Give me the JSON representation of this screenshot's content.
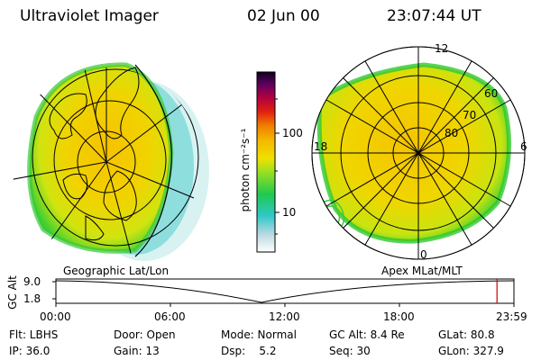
{
  "header": {
    "instrument": "Ultraviolet Imager",
    "date": "02 Jun 00",
    "time": "23:07:44 UT"
  },
  "colorbar": {
    "unit_label": "photon cm⁻²s⁻¹",
    "ticks": [
      "100",
      "10"
    ]
  },
  "geo_panel": {
    "label": "Geographic Lat/Lon"
  },
  "polar_panel": {
    "label": "Apex MLat/MLT",
    "mlt_labels": {
      "top": "12",
      "left": "18",
      "right": "6",
      "bottom": "0"
    },
    "lat_labels": [
      "60",
      "70",
      "80"
    ]
  },
  "orbit_plot": {
    "ylabel": "GC Alt",
    "y_ticks": [
      "9.0",
      "1.8"
    ],
    "x_ticks": [
      "00:00",
      "06:00",
      "12:00",
      "18:00",
      "23:59"
    ],
    "current_time_fraction": 0.963
  },
  "info": {
    "row1": [
      {
        "key": "Flt: LBHS"
      },
      {
        "key": "Door: Open"
      },
      {
        "key": "Mode: Normal"
      },
      {
        "key": "GC Alt: 8.4 Re"
      },
      {
        "key": "GLat: 80.8"
      }
    ],
    "row2": [
      {
        "key": "IP: 36.0"
      },
      {
        "key": "Gain: 13"
      },
      {
        "key": "Dsp:    5.2"
      },
      {
        "key": "Seq: 30"
      },
      {
        "key": "GLon: 327.9"
      }
    ]
  },
  "colors": {
    "bright": "#f5c800",
    "mid": "#d8e60a",
    "green": "#30d020",
    "cyan": "#30c8c8",
    "marker": "#cc0000"
  }
}
